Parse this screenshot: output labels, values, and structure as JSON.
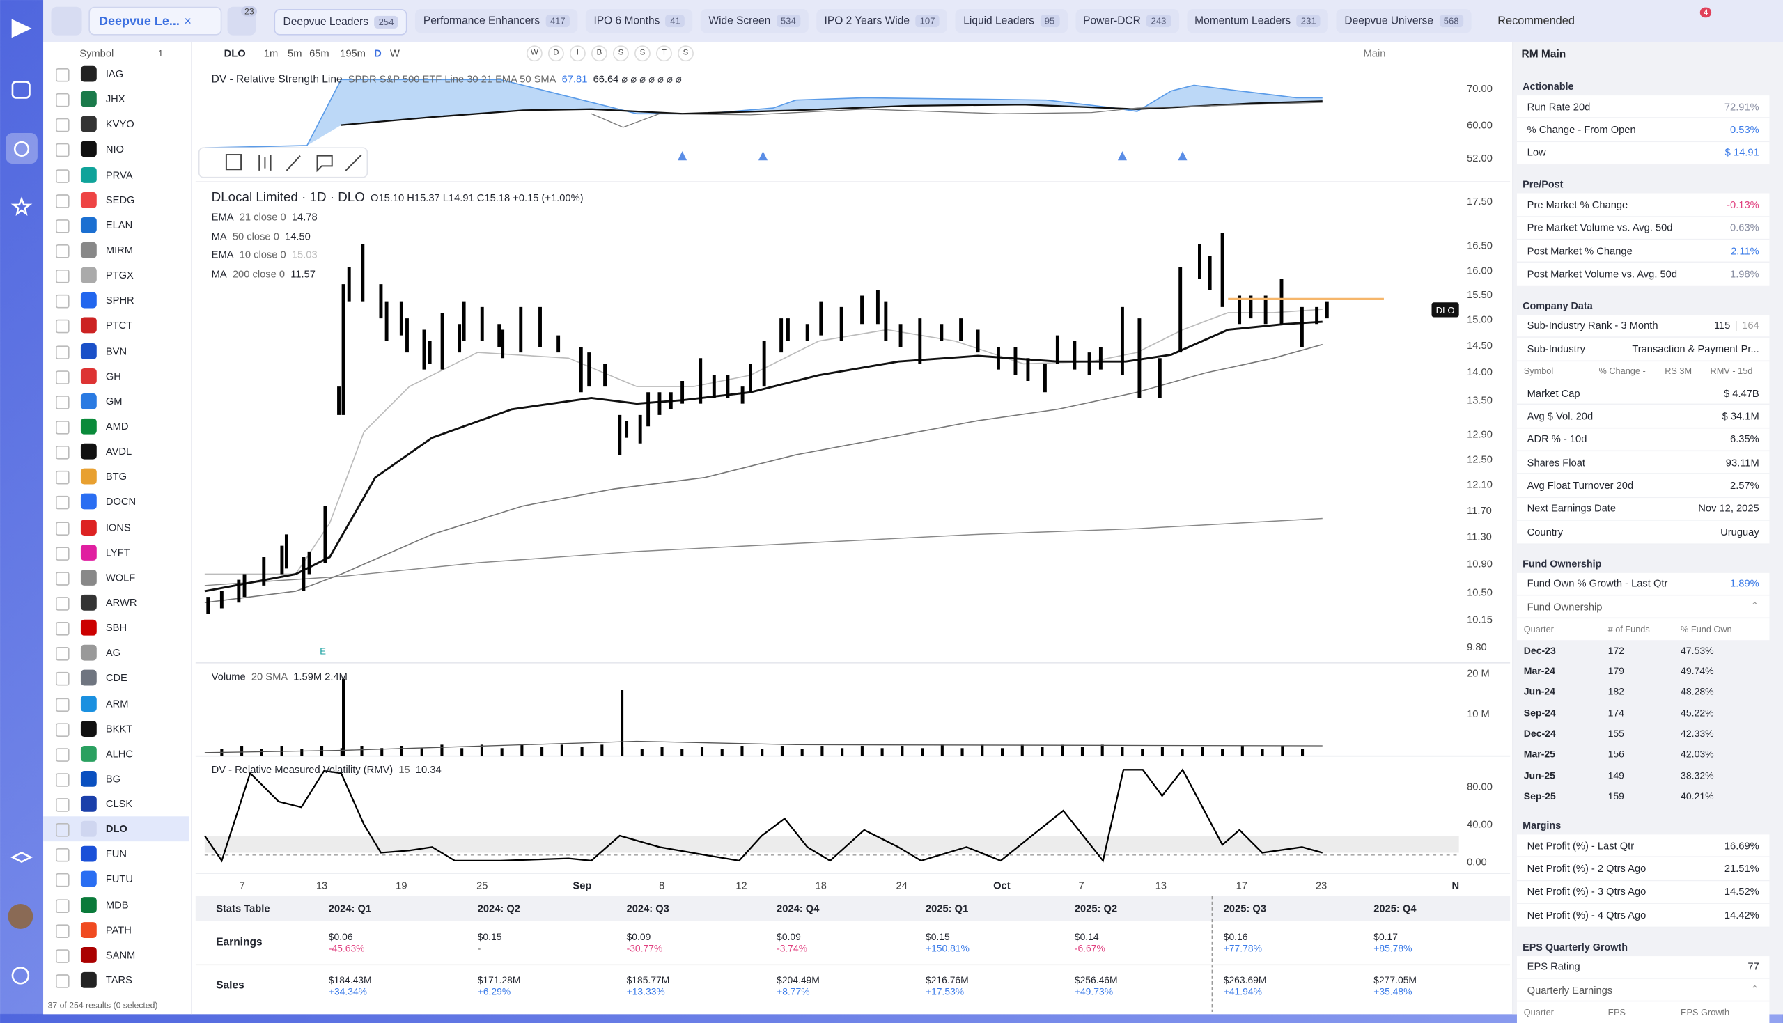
{
  "top_bar": {
    "watchlist": "Deepvue Le...",
    "badge": "23",
    "tabs": [
      {
        "name": "Deepvue Leaders",
        "count": "254"
      },
      {
        "name": "Performance Enhancers",
        "count": "417"
      },
      {
        "name": "IPO 6 Months",
        "count": "41"
      },
      {
        "name": "Wide Screen",
        "count": "534"
      },
      {
        "name": "IPO 2 Years Wide",
        "count": "107"
      },
      {
        "name": "Liquid Leaders",
        "count": "95"
      },
      {
        "name": "Power-DCR",
        "count": "243"
      },
      {
        "name": "Momentum Leaders",
        "count": "231"
      },
      {
        "name": "Deepvue Universe",
        "count": "568"
      }
    ],
    "view": "Recommended",
    "notifications": "4"
  },
  "symbols": {
    "header": "Symbol",
    "count": "1",
    "items": [
      "IAG",
      "JHX",
      "KVYO",
      "NIO",
      "PRVA",
      "SEDG",
      "ELAN",
      "MIRM",
      "PTGX",
      "SPHR",
      "PTCT",
      "BVN",
      "GH",
      "GM",
      "AMD",
      "AVDL",
      "BTG",
      "DOCN",
      "IONS",
      "LYFT",
      "WOLF",
      "ARWR",
      "SBH",
      "AG",
      "CDE",
      "ARM",
      "BKKT",
      "ALHC",
      "BG",
      "CLSK",
      "DLO",
      "FUN",
      "FUTU",
      "MDB",
      "PATH",
      "SANM",
      "TARS"
    ],
    "selected": "DLO",
    "footer": "37 of 254 results (0 selected)"
  },
  "chart_toolbar": {
    "symbol": "DLO",
    "intervals": [
      "1m",
      "5m",
      "65m",
      "195m",
      "D",
      "W"
    ],
    "letters": [
      "W",
      "D",
      "I",
      "B",
      "S",
      "S",
      "T",
      "S"
    ],
    "layout": "Main"
  },
  "rs_pane": {
    "title": "DV - Relative Strength Line",
    "details": "SPDR S&P 500 ETF Line 30 21 EMA 50 SMA",
    "value": "67.81",
    "value2": "66.64 ⌀ ⌀ ⌀ ⌀ ⌀ ⌀ ⌀",
    "yticks": [
      "70.00",
      "60.00",
      "52.00"
    ]
  },
  "price_pane": {
    "title": "DLocal Limited · 1D · DLO",
    "ohlc": "O15.10 H15.37 L14.91 C15.18 +0.15 (+1.00%)",
    "studies": [
      {
        "name": "EMA",
        "params": "21 close 0",
        "value": "14.78"
      },
      {
        "name": "MA",
        "params": "50 close 0",
        "value": "14.50"
      },
      {
        "name": "EMA",
        "params": "10 close 0",
        "value": "15.03"
      },
      {
        "name": "MA",
        "params": "200 close 0",
        "value": "11.57"
      }
    ],
    "yticks": [
      "17.50",
      "16.50",
      "16.00",
      "15.50",
      "15.00",
      "14.50",
      "14.00",
      "13.50",
      "12.90",
      "12.50",
      "12.10",
      "11.70",
      "11.30",
      "10.90",
      "10.50",
      "10.15",
      "9.80"
    ],
    "tag": "DLO",
    "earnings_marker": "E"
  },
  "volume_pane": {
    "title": "Volume",
    "params": "20 SMA",
    "values": "1.59M 2.4M",
    "yticks": [
      "20 M",
      "10 M"
    ]
  },
  "rmv_pane": {
    "title": "DV - Relative Measured Volatility (RMV)",
    "params": "15",
    "value": "10.34",
    "yticks": [
      "80.00",
      "40.00",
      "0.00"
    ]
  },
  "x_axis": [
    "7",
    "13",
    "19",
    "25",
    "Sep",
    "8",
    "12",
    "18",
    "24",
    "Oct",
    "7",
    "13",
    "17",
    "23",
    "N"
  ],
  "stats_table": {
    "title": "Stats Table",
    "columns": [
      "2024: Q1",
      "2024: Q2",
      "2024: Q3",
      "2024: Q4",
      "2025: Q1",
      "2025: Q2",
      "2025: Q3",
      "2025: Q4"
    ],
    "rows": [
      {
        "label": "Earnings",
        "cells": [
          [
            "$0.06",
            "-45.63%"
          ],
          [
            "$0.15",
            "-"
          ],
          [
            "$0.09",
            "-30.77%"
          ],
          [
            "$0.09",
            "-3.74%"
          ],
          [
            "$0.15",
            "+150.81%"
          ],
          [
            "$0.14",
            "-6.67%"
          ],
          [
            "$0.16",
            "+77.78%"
          ],
          [
            "$0.17",
            "+85.78%"
          ]
        ]
      },
      {
        "label": "Sales",
        "cells": [
          [
            "$184.43M",
            "+34.34%"
          ],
          [
            "$171.28M",
            "+6.29%"
          ],
          [
            "$185.77M",
            "+13.33%"
          ],
          [
            "$204.49M",
            "+8.77%"
          ],
          [
            "$216.76M",
            "+17.53%"
          ],
          [
            "$256.46M",
            "+49.73%"
          ],
          [
            "$263.69M",
            "+41.94%"
          ],
          [
            "$277.05M",
            "+35.48%"
          ]
        ]
      }
    ]
  },
  "right_panel": {
    "title": "RM Main",
    "blocks": [
      {
        "header": "Actionable"
      },
      {
        "label": "Run Rate 20d",
        "value": "72.91%",
        "color": "#8a8fa3"
      },
      {
        "label": "% Change - From Open",
        "value": "0.53%",
        "color": "#3b7be8"
      },
      {
        "label": "Low",
        "value": "$ 14.91",
        "color": "#3b7be8"
      },
      {
        "header": "Pre/Post"
      },
      {
        "label": "Pre Market % Change",
        "value": "-0.13%",
        "color": "#e0407f"
      },
      {
        "label": "Pre Market Volume vs. Avg. 50d",
        "value": "0.63%",
        "color": "#8a8fa3"
      },
      {
        "label": "Post Market % Change",
        "value": "2.11%",
        "color": "#3b7be8"
      },
      {
        "label": "Post Market Volume vs. Avg. 50d",
        "value": "1.98%",
        "color": "#8a8fa3"
      },
      {
        "header": "Company Data"
      },
      {
        "label": "Sub-Industry Rank - 3 Month",
        "value": "115",
        "extra": "164"
      },
      {
        "label": "Sub-Industry",
        "value": "Transaction & Payment Pr..."
      },
      {
        "columns": [
          "Symbol",
          "% Change -",
          "RS 3M",
          "RMV - 15d"
        ]
      },
      {
        "label": "Market Cap",
        "value": "$ 4.47B"
      },
      {
        "label": "Avg $ Vol. 20d",
        "value": "$ 34.1M"
      },
      {
        "label": "ADR % - 10d",
        "value": "6.35%"
      },
      {
        "label": "Shares Float",
        "value": "93.11M"
      },
      {
        "label": "Avg Float Turnover 20d",
        "value": "2.57%"
      },
      {
        "label": "Next Earnings Date",
        "value": "Nov 12, 2025"
      },
      {
        "label": "Country",
        "value": "Uruguay"
      },
      {
        "header": "Fund Ownership"
      },
      {
        "label": "Fund Own % Growth - Last Qtr",
        "value": "1.89%",
        "color": "#3b7be8"
      },
      {
        "group": "Fund Ownership"
      },
      {
        "columns": [
          "Quarter",
          "# of Funds",
          "% Fund Own"
        ]
      },
      {
        "cells": [
          "Dec-23",
          "172",
          "47.53%"
        ]
      },
      {
        "cells": [
          "Mar-24",
          "179",
          "49.74%"
        ]
      },
      {
        "cells": [
          "Jun-24",
          "182",
          "48.28%"
        ]
      },
      {
        "cells": [
          "Sep-24",
          "174",
          "45.22%"
        ]
      },
      {
        "cells": [
          "Dec-24",
          "155",
          "42.33%"
        ]
      },
      {
        "cells": [
          "Mar-25",
          "156",
          "42.03%"
        ]
      },
      {
        "cells": [
          "Jun-25",
          "149",
          "38.32%"
        ]
      },
      {
        "cells": [
          "Sep-25",
          "159",
          "40.21%"
        ]
      },
      {
        "header": "Margins"
      },
      {
        "label": "Net Profit (%) - Last Qtr",
        "value": "16.69%"
      },
      {
        "label": "Net Profit (%) - 2 Qtrs Ago",
        "value": "21.51%"
      },
      {
        "label": "Net Profit (%) - 3 Qtrs Ago",
        "value": "14.52%"
      },
      {
        "label": "Net Profit (%) - 4 Qtrs Ago",
        "value": "14.42%"
      },
      {
        "header": "EPS Quarterly Growth"
      },
      {
        "label": "EPS Rating",
        "value": "77"
      },
      {
        "group": "Quarterly Earnings"
      },
      {
        "columns": [
          "Quarter",
          "EPS",
          "EPS Growth"
        ]
      }
    ]
  }
}
